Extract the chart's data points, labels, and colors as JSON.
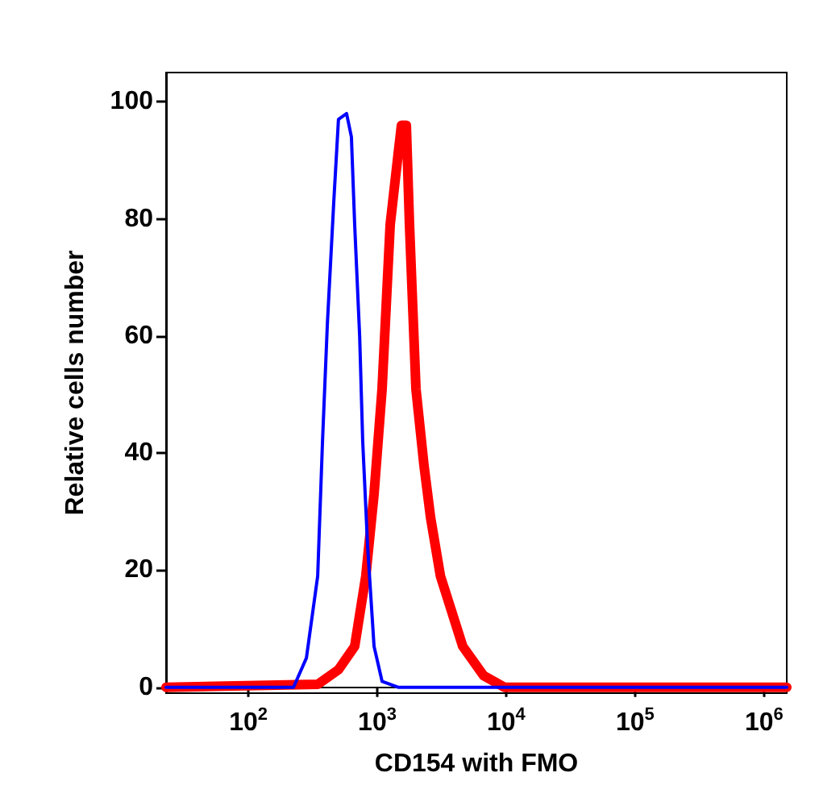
{
  "chart_data": {
    "type": "line",
    "xlabel": "CD154 with FMO",
    "ylabel": "Relative cells number",
    "log": "x",
    "xlim": [
      23,
      1500000
    ],
    "ylim": [
      -1,
      105
    ],
    "xticks": [
      {
        "value": 100,
        "label": "10$^{2}$"
      },
      {
        "value": 1000,
        "label": "10$^{3}$"
      },
      {
        "value": 10000,
        "label": "10$^{4}$"
      },
      {
        "value": 100000,
        "label": "10$^{5}$"
      },
      {
        "value": 1000000,
        "label": "10$^{6}$"
      }
    ],
    "yticks": [
      0,
      20,
      40,
      60,
      80,
      100
    ],
    "marker": "none",
    "line_style": "solid",
    "series": [
      {
        "color": "#0000ff",
        "x": [
          23,
          224,
          282,
          345,
          376,
          410,
          460,
          500,
          578,
          630,
          668,
          730,
          771,
          842,
          944,
          1090,
          1450,
          1500000
        ],
        "values": [
          0,
          0,
          5,
          19,
          42,
          62,
          83,
          97,
          98,
          94,
          79,
          60,
          42,
          24,
          7,
          1,
          0,
          0
        ]
      },
      {
        "color": "#ff0000",
        "x": [
          23,
          345,
          500,
          668,
          815,
          944,
          1090,
          1259,
          1450,
          1540,
          1680,
          1778,
          1995,
          2300,
          2590,
          3090,
          4600,
          6680,
          9700,
          1500000
        ],
        "values": [
          0,
          0.5,
          3,
          7,
          19,
          33,
          51,
          79,
          91,
          96,
          96,
          79,
          51,
          38,
          29,
          19,
          7,
          2,
          0,
          0
        ]
      }
    ]
  }
}
